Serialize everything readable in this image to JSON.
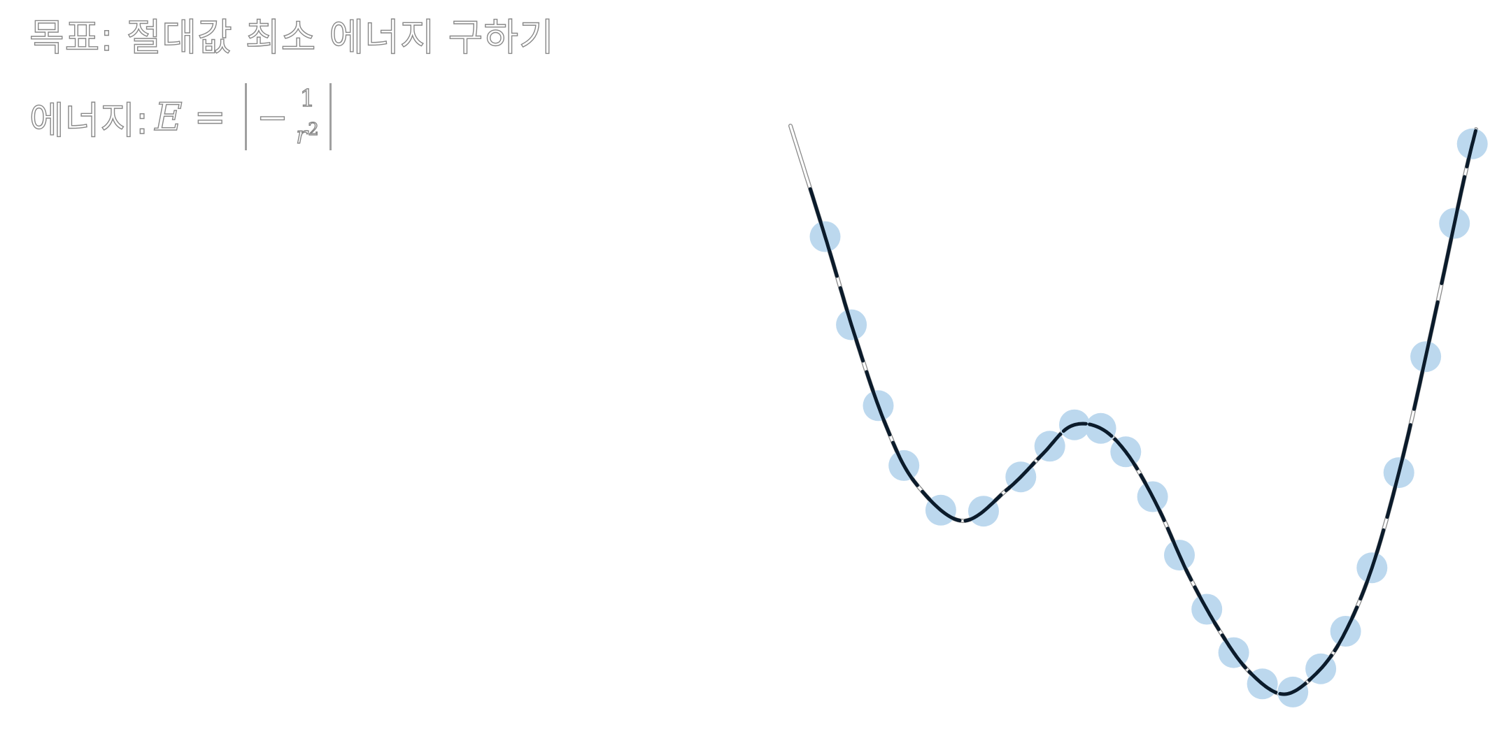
{
  "title": "목표: 절대값 최소 에너지 구하기",
  "energy": {
    "label": "에너지:",
    "symbol": "E",
    "equals": "=",
    "minus": "−",
    "numerator": "1",
    "denominator": "r",
    "exponent": "2"
  },
  "diagram": {
    "curve_color": "#000000",
    "curve_highlight_color": "#0b1b2b",
    "marker_color": "#bcd8ee",
    "marker_count": 24
  }
}
